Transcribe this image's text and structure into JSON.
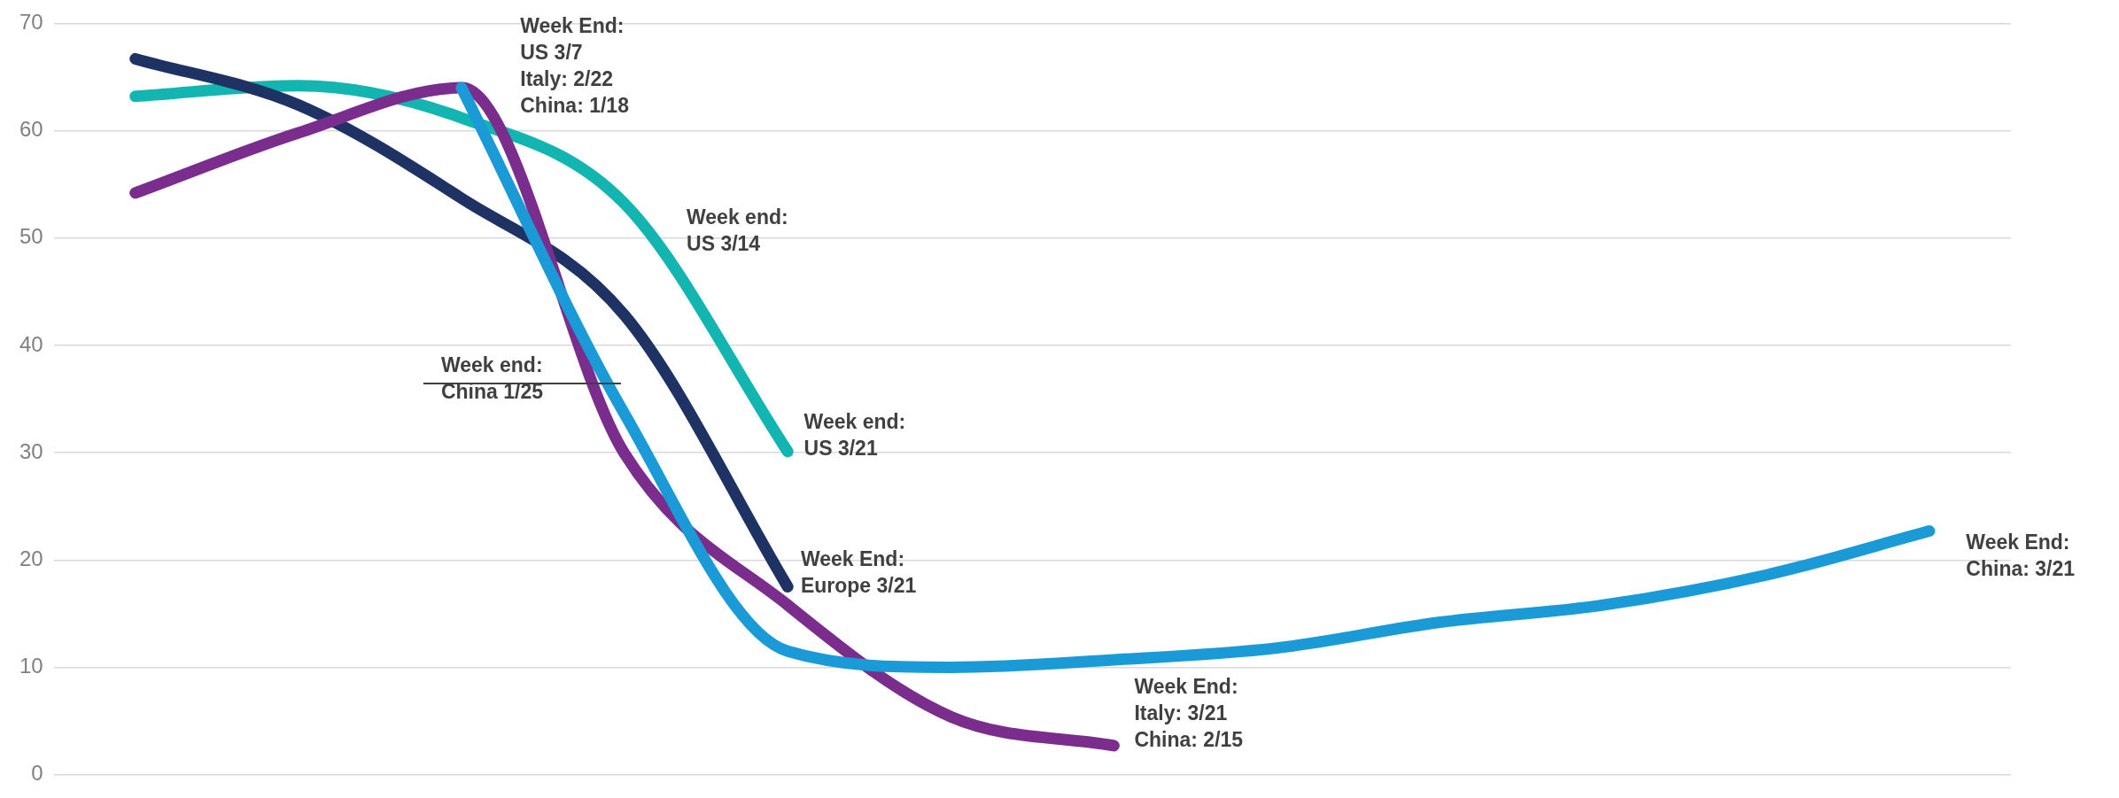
{
  "chart_data": {
    "type": "line",
    "categories": [
      null,
      null,
      null,
      null,
      null,
      null,
      null,
      null,
      null,
      null,
      null,
      null
    ],
    "series": [
      {
        "color": "#1a9bd7",
        "values": [
          null,
          null,
          64.0,
          33.6,
          11.5,
          10.0,
          10.7,
          11.8,
          14.2,
          15.8,
          18.6,
          22.7
        ]
      },
      {
        "color": "#7b2d8e",
        "values": [
          54.2,
          59.8,
          64.0,
          29.9,
          15.8,
          5.4,
          2.7,
          null,
          null,
          null,
          null,
          null
        ]
      },
      {
        "color": "#1f3264",
        "values": [
          66.7,
          62.4,
          53.7,
          42.8,
          17.5,
          null,
          null,
          null,
          null,
          null,
          null,
          null
        ]
      },
      {
        "color": "#12b5b0",
        "values": [
          63.2,
          64.2,
          61.2,
          53.2,
          30.1,
          null,
          null,
          null,
          null,
          null,
          null,
          null
        ]
      }
    ],
    "ylim": [
      0,
      70
    ],
    "yticks": [
      0,
      10,
      20,
      30,
      40,
      50,
      60,
      70
    ],
    "grid": "y",
    "tick_labels": "y",
    "marker": "none",
    "legend": false,
    "annotations": [
      "Week End:\nUS 3/7\nItaly: 2/22\nChina: 1/18",
      "Week end:\nUS 3/14",
      "Week end:\nChina 1/25",
      "Week end:\nUS 3/21",
      "Week End:\nEurope 3/21",
      "Week End:\nItaly: 3/21\nChina: 2/15",
      "Week End:\nChina: 3/21"
    ]
  }
}
